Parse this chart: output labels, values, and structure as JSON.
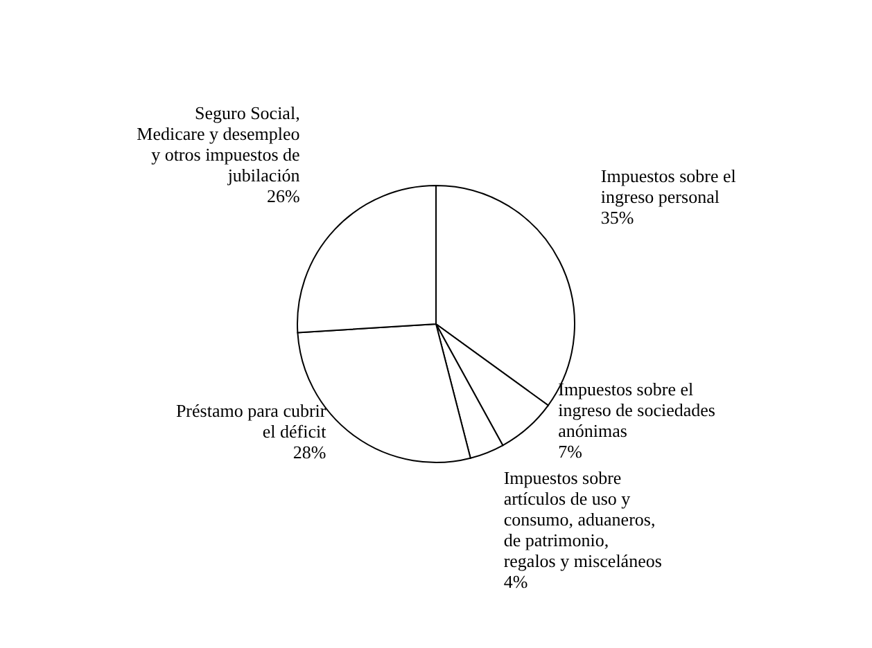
{
  "chart_data": {
    "type": "pie",
    "categories": [
      "Impuestos sobre el ingreso personal",
      "Impuestos sobre el ingreso de sociedades anónimas",
      "Impuestos sobre artículos de uso y consumo, aduaneros, de patrimonio, regalos y misceláneos",
      "Préstamo para cubrir el déficit",
      "Seguro Social, Medicare y desempleo y otros impuestos de jubilación"
    ],
    "values": [
      35,
      7,
      4,
      28,
      26
    ],
    "value_labels": [
      "35%",
      "7%",
      "4%",
      "28%",
      "26%"
    ],
    "colors": [
      "#ffffff",
      "#ffffff",
      "#ffffff",
      "#ffffff",
      "#ffffff"
    ],
    "legend": false
  }
}
